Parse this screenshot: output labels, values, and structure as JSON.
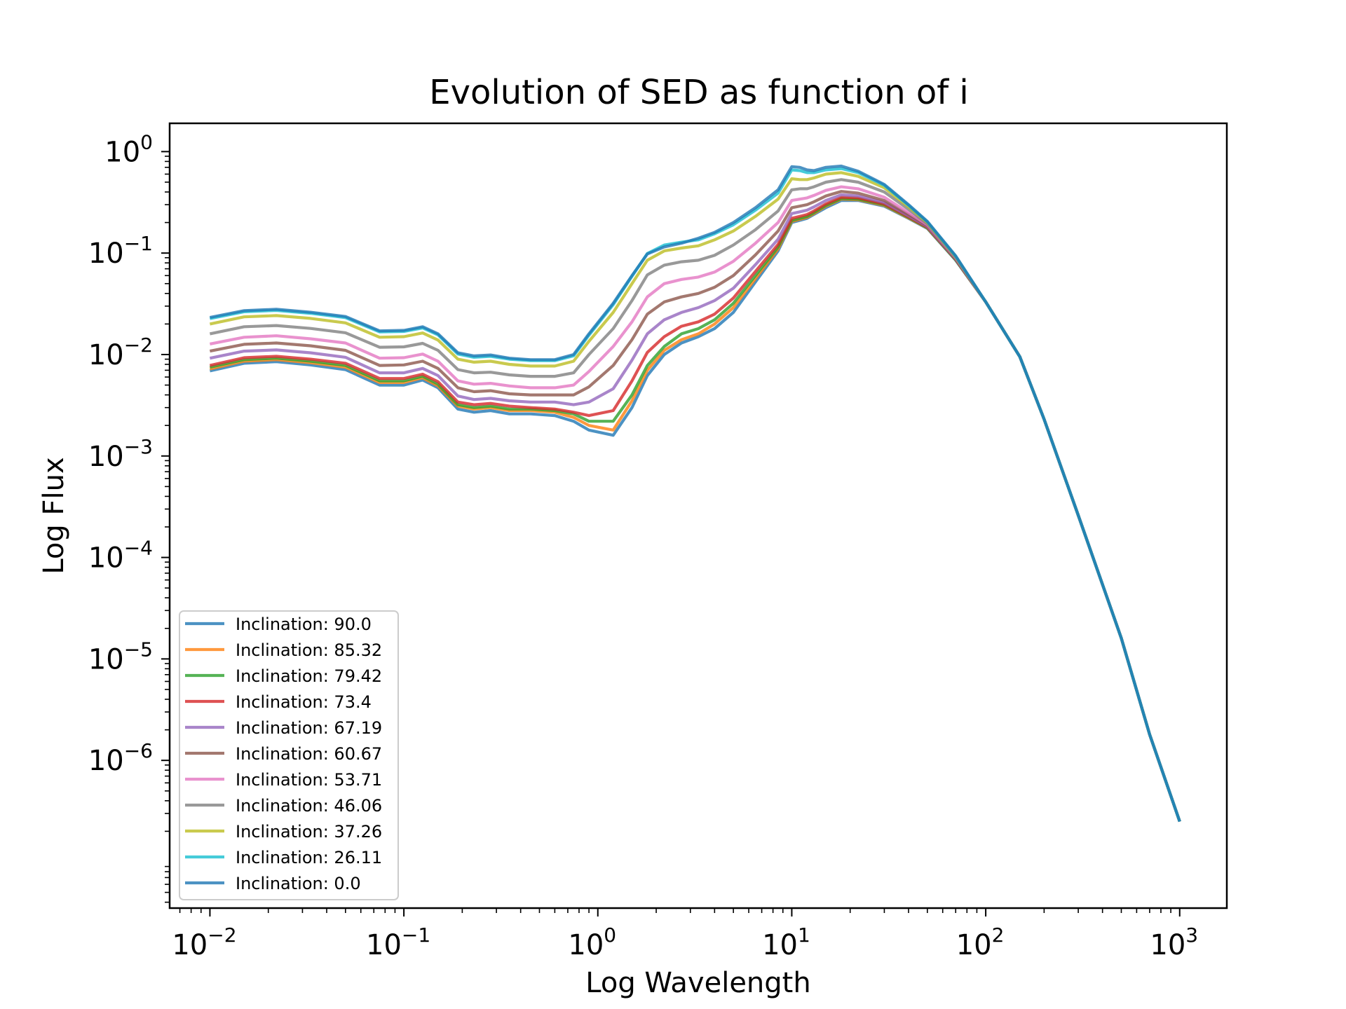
{
  "chart_data": {
    "type": "line",
    "title": "Evolution of SED as function of i",
    "xlabel": "Log Wavelength",
    "ylabel": "Log Flux",
    "xscale": "log",
    "yscale": "log",
    "xlim": [
      0.0062,
      1750
    ],
    "ylim": [
      3.5e-08,
      1.9
    ],
    "xticks": [
      {
        "value": 0.01,
        "base": "10",
        "exp": "−2"
      },
      {
        "value": 0.1,
        "base": "10",
        "exp": "−1"
      },
      {
        "value": 1,
        "base": "10",
        "exp": "0"
      },
      {
        "value": 10,
        "base": "10",
        "exp": "1"
      },
      {
        "value": 100,
        "base": "10",
        "exp": "2"
      },
      {
        "value": 1000,
        "base": "10",
        "exp": "3"
      }
    ],
    "yticks": [
      {
        "value": 1,
        "base": "10",
        "exp": "0"
      },
      {
        "value": 0.1,
        "base": "10",
        "exp": "−1"
      },
      {
        "value": 0.01,
        "base": "10",
        "exp": "−2"
      },
      {
        "value": 0.001,
        "base": "10",
        "exp": "−3"
      },
      {
        "value": 0.0001,
        "base": "10",
        "exp": "−4"
      },
      {
        "value": 1e-05,
        "base": "10",
        "exp": "−5"
      },
      {
        "value": 1e-06,
        "base": "10",
        "exp": "−6"
      }
    ],
    "grid": false,
    "legend_position": "lower-left",
    "x": [
      0.01,
      0.015,
      0.022,
      0.033,
      0.05,
      0.075,
      0.1,
      0.125,
      0.15,
      0.19,
      0.23,
      0.28,
      0.35,
      0.45,
      0.6,
      0.75,
      0.9,
      1.2,
      1.5,
      1.8,
      2.2,
      2.7,
      3.3,
      4.0,
      5.0,
      6.5,
      8.5,
      10,
      11,
      12,
      13,
      15,
      18,
      22,
      30,
      40,
      50,
      70,
      100,
      150,
      200,
      300,
      500,
      700,
      1000
    ],
    "series": [
      {
        "name": "Inclination: 90.0",
        "color": "#1f77b4",
        "values": [
          0.0069,
          0.0082,
          0.0085,
          0.0079,
          0.0071,
          0.005,
          0.005,
          0.0056,
          0.0047,
          0.0029,
          0.0027,
          0.0028,
          0.0026,
          0.0026,
          0.0025,
          0.0022,
          0.0018,
          0.0016,
          0.003,
          0.0062,
          0.01,
          0.013,
          0.015,
          0.018,
          0.026,
          0.052,
          0.105,
          0.2,
          0.21,
          0.22,
          0.24,
          0.28,
          0.33,
          0.33,
          0.29,
          0.22,
          0.175,
          0.085,
          0.033,
          0.0095,
          0.0023,
          0.00026,
          1.6e-05,
          1.8e-06,
          2.5e-07
        ]
      },
      {
        "name": "Inclination: 85.32",
        "color": "#ff7f0e",
        "values": [
          0.0072,
          0.0086,
          0.0089,
          0.0083,
          0.0075,
          0.0053,
          0.0053,
          0.0059,
          0.0049,
          0.0031,
          0.0029,
          0.003,
          0.0028,
          0.0028,
          0.0027,
          0.0024,
          0.002,
          0.0018,
          0.0035,
          0.007,
          0.011,
          0.014,
          0.016,
          0.02,
          0.029,
          0.056,
          0.11,
          0.205,
          0.215,
          0.225,
          0.245,
          0.29,
          0.34,
          0.335,
          0.295,
          0.222,
          0.177,
          0.086,
          0.033,
          0.0095,
          0.0023,
          0.00026,
          1.6e-05,
          1.8e-06,
          2.5e-07
        ]
      },
      {
        "name": "Inclination: 79.42",
        "color": "#2ca02c",
        "values": [
          0.0075,
          0.0089,
          0.0092,
          0.0086,
          0.0078,
          0.0055,
          0.0055,
          0.0061,
          0.0051,
          0.0032,
          0.003,
          0.0031,
          0.0029,
          0.0029,
          0.0028,
          0.0026,
          0.0022,
          0.0022,
          0.004,
          0.0078,
          0.012,
          0.016,
          0.018,
          0.022,
          0.032,
          0.06,
          0.115,
          0.21,
          0.22,
          0.23,
          0.25,
          0.295,
          0.345,
          0.34,
          0.3,
          0.225,
          0.178,
          0.086,
          0.033,
          0.0095,
          0.0023,
          0.00026,
          1.6e-05,
          1.8e-06,
          2.5e-07
        ]
      },
      {
        "name": "Inclination: 73.4",
        "color": "#d62728",
        "values": [
          0.0078,
          0.0093,
          0.0096,
          0.009,
          0.0082,
          0.0058,
          0.0058,
          0.0064,
          0.0054,
          0.0034,
          0.0032,
          0.0033,
          0.0031,
          0.003,
          0.0029,
          0.0027,
          0.0025,
          0.0028,
          0.0055,
          0.0105,
          0.015,
          0.019,
          0.021,
          0.025,
          0.036,
          0.066,
          0.122,
          0.22,
          0.23,
          0.24,
          0.26,
          0.305,
          0.355,
          0.35,
          0.305,
          0.228,
          0.18,
          0.087,
          0.033,
          0.0095,
          0.0023,
          0.00026,
          1.6e-05,
          1.8e-06,
          2.5e-07
        ]
      },
      {
        "name": "Inclination: 67.19",
        "color": "#9467bd",
        "values": [
          0.0092,
          0.0108,
          0.0111,
          0.0104,
          0.0094,
          0.0066,
          0.0066,
          0.0073,
          0.0062,
          0.0039,
          0.0036,
          0.0037,
          0.0035,
          0.0034,
          0.0034,
          0.0032,
          0.0034,
          0.0046,
          0.0088,
          0.016,
          0.022,
          0.026,
          0.029,
          0.034,
          0.045,
          0.077,
          0.137,
          0.245,
          0.255,
          0.265,
          0.285,
          0.33,
          0.375,
          0.365,
          0.315,
          0.233,
          0.183,
          0.088,
          0.033,
          0.0095,
          0.0023,
          0.00026,
          1.6e-05,
          1.8e-06,
          2.5e-07
        ]
      },
      {
        "name": "Inclination: 60.67",
        "color": "#8c564b",
        "values": [
          0.0108,
          0.0126,
          0.013,
          0.0122,
          0.011,
          0.0078,
          0.0079,
          0.0086,
          0.0073,
          0.0047,
          0.0043,
          0.0044,
          0.0041,
          0.004,
          0.004,
          0.004,
          0.0048,
          0.0078,
          0.014,
          0.025,
          0.033,
          0.037,
          0.04,
          0.046,
          0.06,
          0.096,
          0.165,
          0.28,
          0.29,
          0.3,
          0.32,
          0.365,
          0.405,
          0.39,
          0.33,
          0.24,
          0.187,
          0.089,
          0.033,
          0.0095,
          0.0023,
          0.00026,
          1.6e-05,
          1.8e-06,
          2.5e-07
        ]
      },
      {
        "name": "Inclination: 53.71",
        "color": "#e377c2",
        "values": [
          0.0127,
          0.0148,
          0.0153,
          0.0143,
          0.013,
          0.0092,
          0.0093,
          0.0101,
          0.0086,
          0.0055,
          0.0051,
          0.0052,
          0.0049,
          0.0047,
          0.0047,
          0.005,
          0.0068,
          0.012,
          0.021,
          0.037,
          0.05,
          0.055,
          0.058,
          0.065,
          0.083,
          0.125,
          0.2,
          0.33,
          0.34,
          0.35,
          0.37,
          0.415,
          0.45,
          0.43,
          0.355,
          0.25,
          0.19,
          0.09,
          0.033,
          0.0095,
          0.0023,
          0.00026,
          1.6e-05,
          1.8e-06,
          2.5e-07
        ]
      },
      {
        "name": "Inclination: 46.06",
        "color": "#7f7f7f",
        "values": [
          0.016,
          0.0188,
          0.0193,
          0.0181,
          0.0164,
          0.0118,
          0.0119,
          0.0129,
          0.011,
          0.0071,
          0.0066,
          0.0067,
          0.0063,
          0.0061,
          0.0061,
          0.0066,
          0.01,
          0.018,
          0.034,
          0.061,
          0.076,
          0.082,
          0.085,
          0.095,
          0.12,
          0.17,
          0.26,
          0.42,
          0.43,
          0.43,
          0.45,
          0.5,
          0.53,
          0.5,
          0.4,
          0.27,
          0.195,
          0.091,
          0.033,
          0.0095,
          0.0023,
          0.00026,
          1.6e-05,
          1.8e-06,
          2.5e-07
        ]
      },
      {
        "name": "Inclination: 37.26",
        "color": "#bcbd22",
        "values": [
          0.02,
          0.0235,
          0.0242,
          0.0227,
          0.0205,
          0.0148,
          0.015,
          0.0163,
          0.0139,
          0.009,
          0.0084,
          0.0086,
          0.008,
          0.0077,
          0.0077,
          0.0086,
          0.0135,
          0.026,
          0.05,
          0.085,
          0.105,
          0.112,
          0.118,
          0.135,
          0.165,
          0.23,
          0.34,
          0.54,
          0.53,
          0.53,
          0.55,
          0.6,
          0.62,
          0.57,
          0.44,
          0.285,
          0.2,
          0.092,
          0.033,
          0.0095,
          0.0023,
          0.00026,
          1.6e-05,
          1.8e-06,
          2.5e-07
        ]
      },
      {
        "name": "Inclination: 26.11",
        "color": "#17becf",
        "values": [
          0.0226,
          0.0264,
          0.0272,
          0.0255,
          0.0231,
          0.0167,
          0.0169,
          0.0183,
          0.0156,
          0.0101,
          0.0094,
          0.0096,
          0.009,
          0.0087,
          0.0087,
          0.0097,
          0.0155,
          0.031,
          0.059,
          0.099,
          0.12,
          0.128,
          0.135,
          0.155,
          0.19,
          0.265,
          0.39,
          0.66,
          0.65,
          0.62,
          0.62,
          0.66,
          0.68,
          0.62,
          0.465,
          0.295,
          0.203,
          0.093,
          0.033,
          0.0095,
          0.0023,
          0.00026,
          1.6e-05,
          1.8e-06,
          2.5e-07
        ]
      },
      {
        "name": "Inclination: 0.0",
        "color": "#1f77b4",
        "values": [
          0.0232,
          0.0271,
          0.0279,
          0.0261,
          0.0237,
          0.0171,
          0.0173,
          0.0188,
          0.016,
          0.0104,
          0.0097,
          0.0099,
          0.0092,
          0.0089,
          0.0089,
          0.01,
          0.016,
          0.032,
          0.06,
          0.098,
          0.115,
          0.125,
          0.14,
          0.16,
          0.2,
          0.28,
          0.42,
          0.71,
          0.7,
          0.66,
          0.65,
          0.7,
          0.72,
          0.64,
          0.475,
          0.3,
          0.205,
          0.094,
          0.033,
          0.0095,
          0.0023,
          0.00026,
          1.6e-05,
          1.8e-06,
          2.5e-07
        ]
      }
    ]
  }
}
